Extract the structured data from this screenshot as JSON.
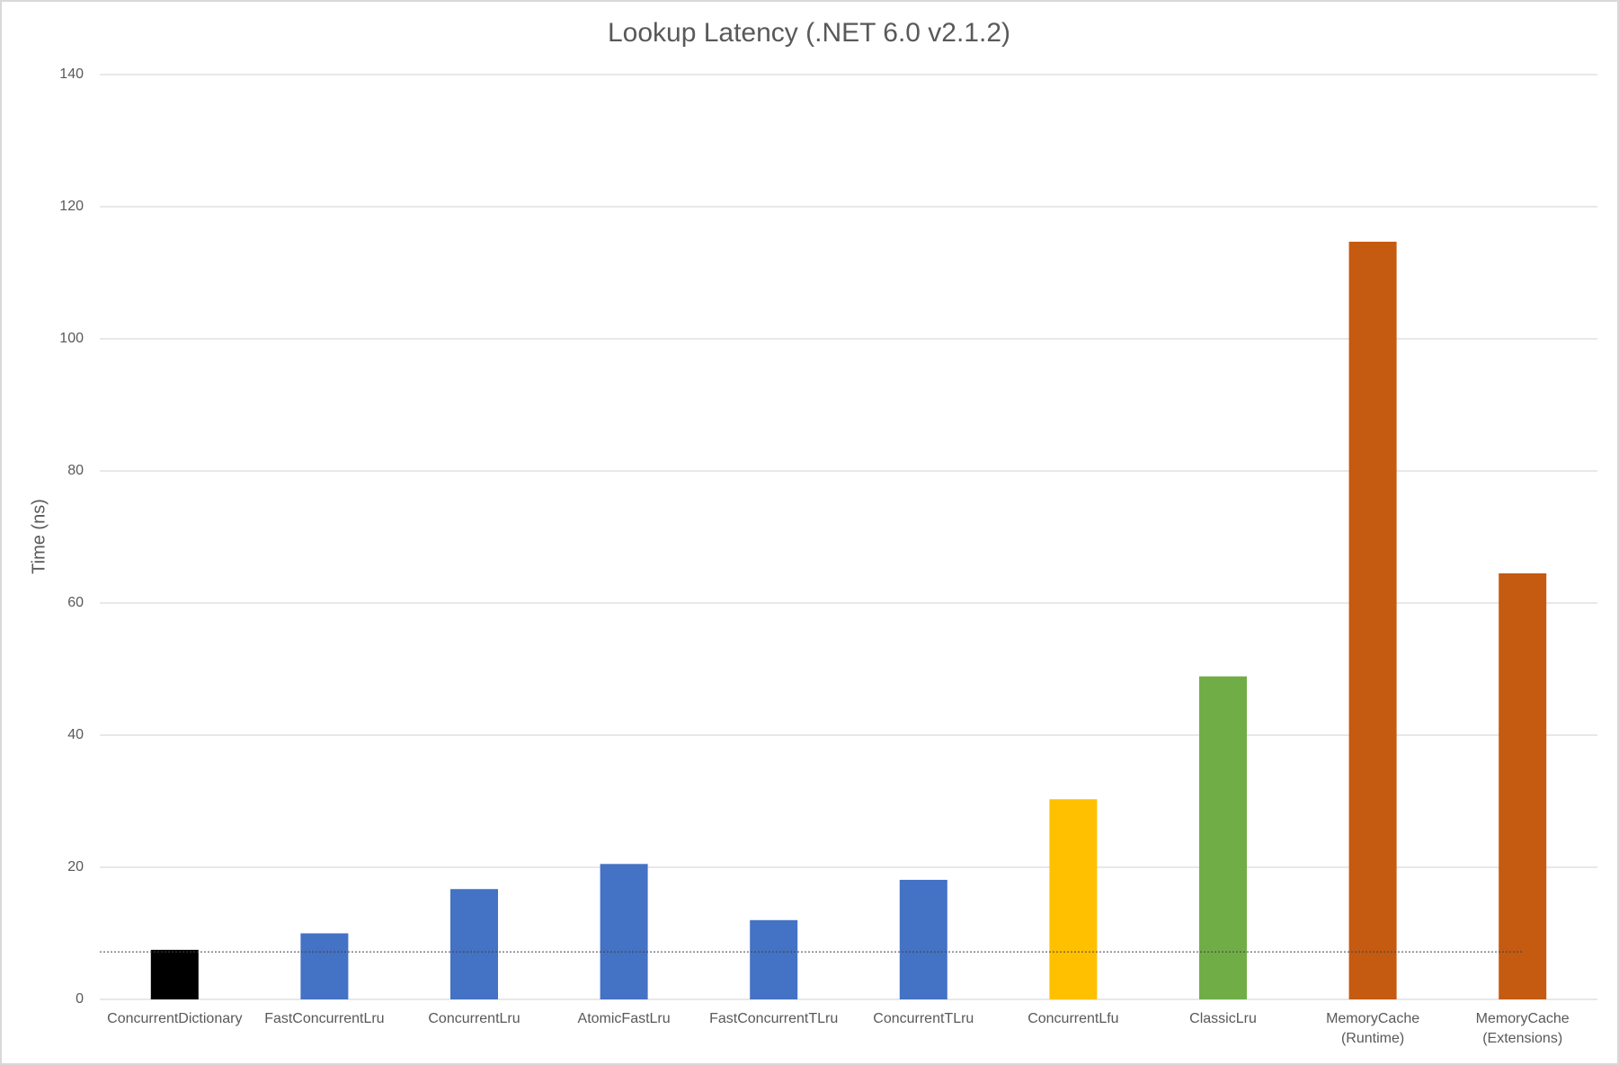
{
  "chart_data": {
    "type": "bar",
    "title": "Lookup Latency (.NET 6.0 v2.1.2)",
    "y_label": "Time (ns)",
    "categories": [
      "ConcurrentDictionary",
      "FastConcurrentLru",
      "ConcurrentLru",
      "AtomicFastLru",
      "FastConcurrentTLru",
      "ConcurrentTLru",
      "ConcurrentLfu",
      "ClassicLru",
      "MemoryCache\n(Runtime)",
      "MemoryCache\n(Extensions)"
    ],
    "values": [
      7.5,
      10.0,
      16.7,
      20.5,
      12.0,
      18.1,
      30.3,
      48.9,
      114.7,
      64.5
    ],
    "colors": [
      "#000000",
      "#4472c4",
      "#4472c4",
      "#4472c4",
      "#4472c4",
      "#4472c4",
      "#ffc000",
      "#70ad47",
      "#c55a11",
      "#c55a11"
    ],
    "reference_line": 7.2,
    "ylim": [
      0,
      140
    ],
    "yticks": [
      0,
      20,
      40,
      60,
      80,
      100,
      120,
      140
    ],
    "grid": true
  }
}
